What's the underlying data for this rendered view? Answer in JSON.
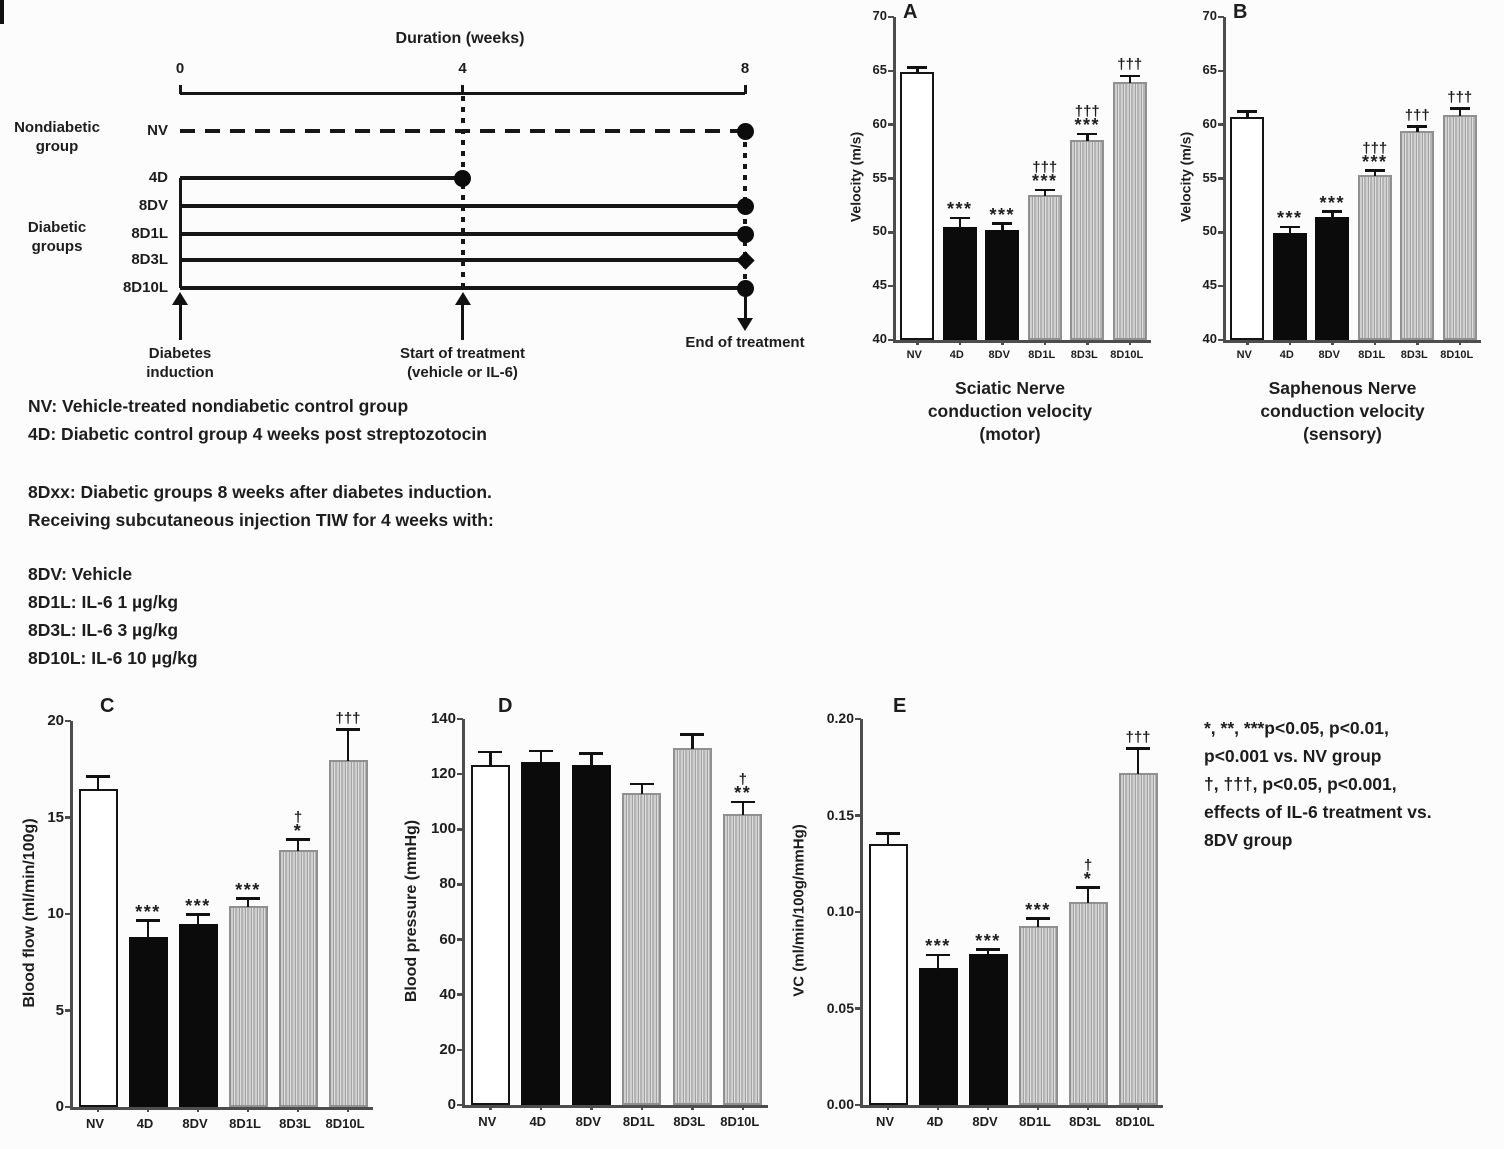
{
  "background": "#fcfcfc",
  "diagram": {
    "title": "Duration (weeks)",
    "axis_ticks": [
      {
        "label": "0",
        "week": 0
      },
      {
        "label": "4",
        "week": 4
      },
      {
        "label": "8",
        "week": 8
      }
    ],
    "group_labels": [
      {
        "lines": [
          "Nondiabetic",
          "group"
        ]
      },
      {
        "lines": [
          "Diabetic",
          "groups"
        ]
      }
    ],
    "rows": [
      {
        "label": "NV",
        "line": "dashed",
        "start_week": 0,
        "end_week": 8,
        "marker": "circle"
      },
      {
        "label": "4D",
        "line": "solid",
        "start_week": 0,
        "end_week": 4,
        "marker": "circle"
      },
      {
        "label": "8DV",
        "line": "solid",
        "start_week": 0,
        "end_week": 8,
        "marker": "circle"
      },
      {
        "label": "8D1L",
        "line": "solid",
        "start_week": 0,
        "end_week": 8,
        "marker": "circle"
      },
      {
        "label": "8D3L",
        "line": "solid",
        "start_week": 0,
        "end_week": 8,
        "marker": "diamond"
      },
      {
        "label": "8D10L",
        "line": "solid",
        "start_week": 0,
        "end_week": 8,
        "marker": "circle"
      }
    ],
    "events": [
      {
        "lines": [
          "Diabetes",
          "induction"
        ],
        "week": 0,
        "arrow": "up"
      },
      {
        "lines": [
          "Start of treatment",
          "(vehicle or IL-6)"
        ],
        "week": 4,
        "arrow": "up"
      },
      {
        "lines": [
          "End of treatment"
        ],
        "week": 8,
        "arrow": "down"
      }
    ]
  },
  "abbreviations": {
    "para1": [
      "NV: Vehicle-treated nondiabetic control group",
      "4D: Diabetic control group 4 weeks post streptozotocin"
    ],
    "para2": [
      "8Dxx: Diabetic groups 8 weeks after diabetes induction.",
      "Receiving subcutaneous injection TIW for 4 weeks with:"
    ],
    "para3": [
      "8DV: Vehicle",
      "8D1L: IL-6 1 µg/kg",
      "8D3L: IL-6 3 µg/kg",
      "8D10L: IL-6 10 µg/kg"
    ]
  },
  "significance_note": [
    "*, **, ***p<0.05, p<0.01,",
    "p<0.001 vs. NV group",
    "†, †††, p<0.05, p<0.001,",
    "effects of IL-6 treatment vs.",
    "8DV group"
  ],
  "chart_data": [
    {
      "id": "A",
      "type": "bar",
      "panel_label": "A",
      "title": "Sciatic Nerve\nconduction velocity\n(motor)",
      "xlabel": "",
      "ylabel": "Velocity (m/s)",
      "ylim": [
        40,
        70
      ],
      "ytick_step": 5,
      "tick_decimals": 0,
      "grid": false,
      "legend_position": "none",
      "categories": [
        "NV",
        "4D",
        "8DV",
        "8D1L",
        "8D3L",
        "8D10L"
      ],
      "values": [
        64.9,
        50.5,
        50.2,
        53.5,
        58.6,
        64.0
      ],
      "errors": [
        0.3,
        0.7,
        0.5,
        0.3,
        0.4,
        0.4
      ],
      "significance": [
        [],
        [
          "***"
        ],
        [
          "***"
        ],
        [
          "†††",
          "***"
        ],
        [
          "†††",
          "***"
        ],
        [
          "†††"
        ]
      ],
      "fills": [
        "white",
        "black",
        "black",
        "hatch",
        "hatch",
        "hatch"
      ]
    },
    {
      "id": "B",
      "type": "bar",
      "panel_label": "B",
      "title": "Saphenous Nerve\nconduction velocity\n(sensory)",
      "xlabel": "",
      "ylabel": "Velocity (m/s)",
      "ylim": [
        40,
        70
      ],
      "ytick_step": 5,
      "tick_decimals": 0,
      "grid": false,
      "legend_position": "none",
      "categories": [
        "NV",
        "4D",
        "8DV",
        "8D1L",
        "8D3L",
        "8D10L"
      ],
      "values": [
        60.7,
        49.9,
        51.4,
        55.3,
        59.4,
        60.9
      ],
      "errors": [
        0.4,
        0.5,
        0.4,
        0.35,
        0.3,
        0.5
      ],
      "significance": [
        [],
        [
          "***"
        ],
        [
          "***"
        ],
        [
          "†††",
          "***"
        ],
        [
          "†††"
        ],
        [
          "†††"
        ]
      ],
      "fills": [
        "white",
        "black",
        "black",
        "hatch",
        "hatch",
        "hatch"
      ]
    },
    {
      "id": "C",
      "type": "bar",
      "panel_label": "C",
      "title": "",
      "xlabel": "",
      "ylabel": "Blood flow (ml/min/100g)",
      "ylim": [
        0,
        20
      ],
      "ytick_step": 5,
      "tick_decimals": 0,
      "grid": false,
      "legend_position": "none",
      "categories": [
        "NV",
        "4D",
        "8DV",
        "8D1L",
        "8D3L",
        "8D10L"
      ],
      "values": [
        16.5,
        8.8,
        9.5,
        10.4,
        13.3,
        18.0
      ],
      "errors": [
        0.55,
        0.8,
        0.4,
        0.35,
        0.5,
        1.5
      ],
      "significance": [
        [],
        [
          "***"
        ],
        [
          "***"
        ],
        [
          "***"
        ],
        [
          "†",
          "*"
        ],
        [
          "†††"
        ]
      ],
      "fills": [
        "white",
        "black",
        "black",
        "hatch",
        "hatch",
        "hatch"
      ]
    },
    {
      "id": "D",
      "type": "bar",
      "panel_label": "D",
      "title": "",
      "xlabel": "",
      "ylabel": "Blood pressure (mmHg)",
      "ylim": [
        0,
        140
      ],
      "ytick_step": 20,
      "tick_decimals": 0,
      "grid": false,
      "legend_position": "none",
      "categories": [
        "NV",
        "4D",
        "8DV",
        "8D1L",
        "8D3L",
        "8D10L"
      ],
      "values": [
        123.5,
        124.5,
        123.5,
        113.0,
        129.5,
        105.5
      ],
      "errors": [
        4,
        3.5,
        3.5,
        3,
        4.5,
        4
      ],
      "significance": [
        [],
        [],
        [],
        [],
        [],
        [
          "†",
          "**"
        ]
      ],
      "fills": [
        "white",
        "black",
        "black",
        "hatch",
        "hatch",
        "hatch"
      ]
    },
    {
      "id": "E",
      "type": "bar",
      "panel_label": "E",
      "title": "",
      "xlabel": "",
      "ylabel": "VC (ml/min/100g/mmHg)",
      "ylim": [
        0,
        0.2
      ],
      "ytick_step": 0.05,
      "tick_decimals": 2,
      "grid": false,
      "legend_position": "none",
      "categories": [
        "NV",
        "4D",
        "8DV",
        "8D1L",
        "8D3L",
        "8D10L"
      ],
      "values": [
        0.135,
        0.071,
        0.078,
        0.093,
        0.105,
        0.172
      ],
      "errors": [
        0.005,
        0.006,
        0.002,
        0.003,
        0.007,
        0.012
      ],
      "significance": [
        [],
        [
          "***"
        ],
        [
          "***"
        ],
        [
          "***"
        ],
        [
          "†",
          "*"
        ],
        [
          "†††"
        ]
      ],
      "fills": [
        "white",
        "black",
        "black",
        "hatch",
        "hatch",
        "hatch"
      ]
    }
  ]
}
